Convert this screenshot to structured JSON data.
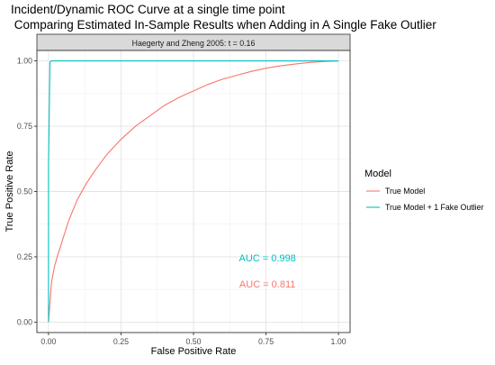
{
  "chart_data": {
    "type": "line",
    "title_line1": "Incident/Dynamic ROC Curve at a single time point",
    "title_line2": " Comparing Estimated In-Sample Results when Adding in A Single Fake Outlier",
    "facet_label": "Haegerty and Zheng 2005: t = 0.16",
    "xlabel": "False Positive Rate",
    "ylabel": "True Positive Rate",
    "xlim": [
      -0.04,
      1.04
    ],
    "ylim": [
      -0.04,
      1.04
    ],
    "x_ticks": [
      0.0,
      0.25,
      0.5,
      0.75,
      1.0
    ],
    "x_tick_labels": [
      "0.00",
      "0.25",
      "0.50",
      "0.75",
      "1.00"
    ],
    "y_ticks": [
      0.0,
      0.25,
      0.5,
      0.75,
      1.0
    ],
    "y_tick_labels": [
      "0.00",
      "0.25",
      "0.50",
      "0.75",
      "1.00"
    ],
    "grid": true,
    "legend": {
      "title": "Model",
      "placement": "right",
      "entries": [
        "True Model",
        "True Model + 1 Fake Outlier"
      ]
    },
    "series": [
      {
        "name": "True Model",
        "color": "#F8766D",
        "x": [
          0.0,
          0.01,
          0.02,
          0.03,
          0.05,
          0.07,
          0.1,
          0.13,
          0.16,
          0.2,
          0.25,
          0.3,
          0.35,
          0.4,
          0.45,
          0.5,
          0.55,
          0.6,
          0.65,
          0.7,
          0.75,
          0.8,
          0.85,
          0.9,
          0.95,
          1.0
        ],
        "y": [
          0.0,
          0.15,
          0.21,
          0.25,
          0.32,
          0.39,
          0.47,
          0.53,
          0.58,
          0.64,
          0.7,
          0.75,
          0.79,
          0.83,
          0.86,
          0.885,
          0.91,
          0.93,
          0.945,
          0.96,
          0.972,
          0.981,
          0.988,
          0.994,
          0.998,
          1.0
        ]
      },
      {
        "name": "True Model + 1 Fake Outlier",
        "color": "#00BFC4",
        "x": [
          0.0,
          0.0,
          0.005,
          0.01,
          0.02,
          1.0
        ],
        "y": [
          0.0,
          0.6,
          0.995,
          1.0,
          1.0,
          1.0
        ]
      }
    ],
    "annotations": [
      {
        "text": "AUC = 0.998",
        "x": 0.755,
        "y": 0.247,
        "color": "#00BFC4"
      },
      {
        "text": "AUC = 0.811",
        "x": 0.755,
        "y": 0.147,
        "color": "#F8766D"
      }
    ]
  }
}
